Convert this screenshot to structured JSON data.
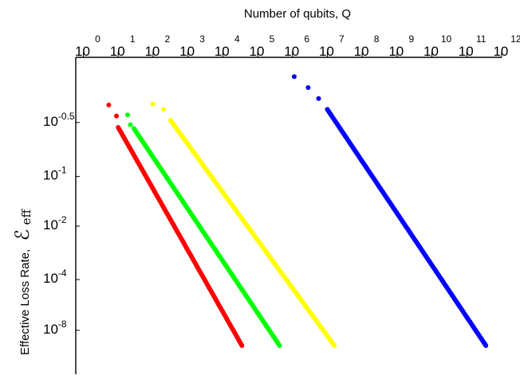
{
  "chart_data": {
    "type": "scatter",
    "title": "",
    "xlabel": "Number of qubits, Q",
    "ylabel": "Effective Loss Rate,",
    "ylabel_symbol": "ℰ",
    "ylabel_subscript": "eff",
    "x_axis": {
      "position": "top",
      "scale": "log10",
      "range": [
        1,
        1000000000000
      ],
      "tick_base": "10",
      "tick_exponents": [
        "0",
        "1",
        "2",
        "3",
        "4",
        "5",
        "6",
        "7",
        "8",
        "9",
        "10",
        "11",
        "12"
      ]
    },
    "y_axis": {
      "scale": "irregular",
      "tick_base": "10",
      "tick_exponents": [
        "-0.5",
        "-1",
        "-2",
        "-4",
        "-8"
      ]
    },
    "grid": false,
    "legend": "none",
    "series": [
      {
        "color": "#ff0000",
        "log10_x_start": 0.73,
        "log10_x_end": 4.55,
        "depth_start": 0.32,
        "depth_end": 4.73,
        "points": 140,
        "sparse_head": [
          [
            0.73,
            0.32
          ],
          [
            0.95,
            0.52
          ],
          [
            1.0,
            0.73
          ]
        ]
      },
      {
        "color": "#00ff00",
        "log10_x_start": 1.27,
        "log10_x_end": 5.63,
        "depth_start": 0.5,
        "depth_end": 4.73,
        "points": 150,
        "sparse_head": [
          [
            1.27,
            0.5
          ],
          [
            1.35,
            0.68
          ],
          [
            1.45,
            0.75
          ]
        ]
      },
      {
        "color": "#ffff00",
        "log10_x_start": 2.0,
        "log10_x_end": 7.2,
        "depth_start": 0.3,
        "depth_end": 4.73,
        "points": 150,
        "sparse_head": [
          [
            2.0,
            0.3
          ],
          [
            2.3,
            0.4
          ],
          [
            2.5,
            0.6
          ]
        ]
      },
      {
        "color": "#0000ff",
        "log10_x_start": 6.05,
        "log10_x_end": 11.55,
        "depth_start": -0.2,
        "depth_end": 4.73,
        "points": 170,
        "sparse_head": [
          [
            6.05,
            -0.2
          ],
          [
            6.45,
            0.0
          ],
          [
            6.75,
            0.2
          ],
          [
            7.0,
            0.4
          ]
        ]
      }
    ]
  }
}
